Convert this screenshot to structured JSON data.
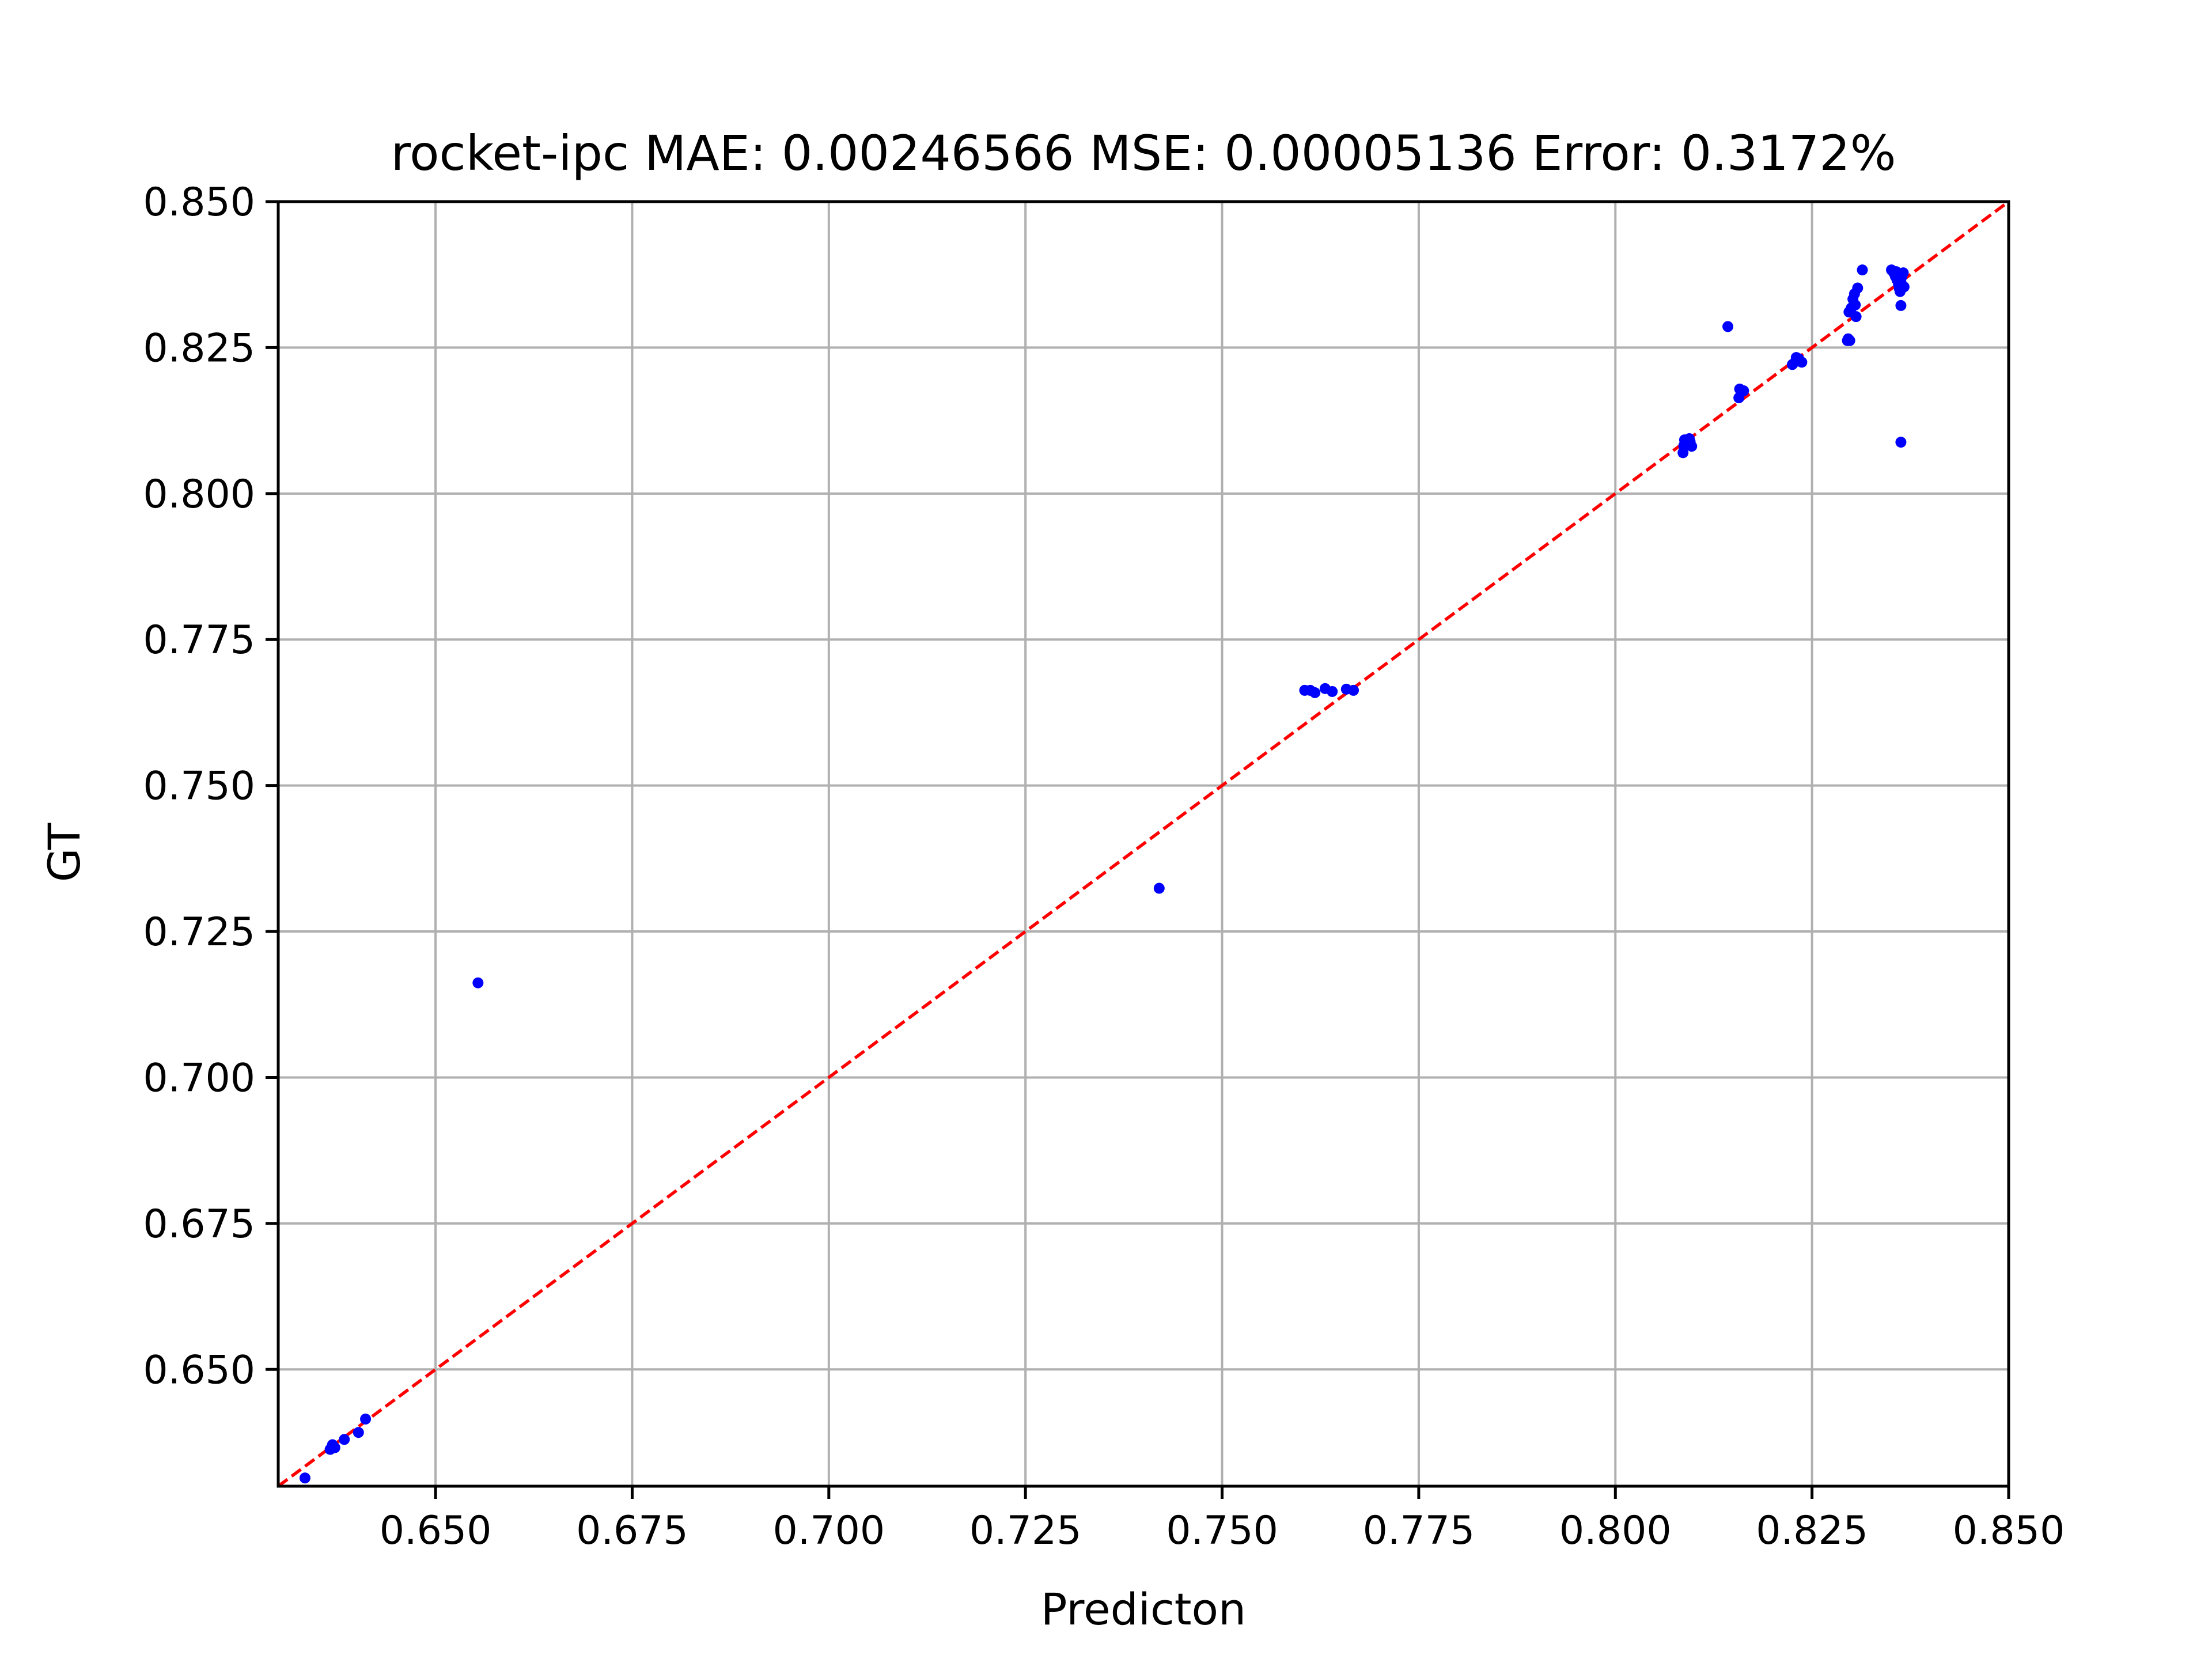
{
  "chart_data": {
    "type": "scatter",
    "title": "rocket-ipc MAE: 0.00246566 MSE: 0.00005136 Error: 0.3172%",
    "xlabel": "Predicton",
    "ylabel": "GT",
    "xlim": [
      0.63,
      0.85
    ],
    "ylim": [
      0.63,
      0.85
    ],
    "xticks": [
      "0.650",
      "0.675",
      "0.700",
      "0.725",
      "0.750",
      "0.775",
      "0.800",
      "0.825",
      "0.850"
    ],
    "yticks": [
      "0.650",
      "0.675",
      "0.700",
      "0.725",
      "0.750",
      "0.775",
      "0.800",
      "0.825",
      "0.850"
    ],
    "grid": true,
    "point_color": "#0000ff",
    "reference_line": {
      "style": "dashed",
      "color": "#ff0000",
      "from": [
        0.63,
        0.63
      ],
      "to": [
        0.85,
        0.85
      ]
    },
    "points": [
      [
        0.6334,
        0.6314
      ],
      [
        0.6366,
        0.6363
      ],
      [
        0.6372,
        0.6366
      ],
      [
        0.6369,
        0.6371
      ],
      [
        0.6384,
        0.638
      ],
      [
        0.6402,
        0.6392
      ],
      [
        0.6411,
        0.6415
      ],
      [
        0.6554,
        0.7162
      ],
      [
        0.742,
        0.7324
      ],
      [
        0.7605,
        0.7663
      ],
      [
        0.7612,
        0.7663
      ],
      [
        0.7618,
        0.7659
      ],
      [
        0.7631,
        0.7666
      ],
      [
        0.764,
        0.7661
      ],
      [
        0.7658,
        0.7665
      ],
      [
        0.7667,
        0.7663
      ],
      [
        0.8086,
        0.807
      ],
      [
        0.8087,
        0.8082
      ],
      [
        0.8088,
        0.8092
      ],
      [
        0.8095,
        0.8089
      ],
      [
        0.8097,
        0.8081
      ],
      [
        0.8094,
        0.8094
      ],
      [
        0.8143,
        0.8286
      ],
      [
        0.8157,
        0.8164
      ],
      [
        0.8158,
        0.8179
      ],
      [
        0.8163,
        0.8176
      ],
      [
        0.8225,
        0.8221
      ],
      [
        0.8229,
        0.8226
      ],
      [
        0.8233,
        0.8231
      ],
      [
        0.8237,
        0.8225
      ],
      [
        0.823,
        0.8233
      ],
      [
        0.8295,
        0.8262
      ],
      [
        0.8296,
        0.8265
      ],
      [
        0.8298,
        0.8262
      ],
      [
        0.8297,
        0.8311
      ],
      [
        0.83,
        0.8318
      ],
      [
        0.8302,
        0.8333
      ],
      [
        0.8304,
        0.8342
      ],
      [
        0.8305,
        0.8323
      ],
      [
        0.8306,
        0.8303
      ],
      [
        0.8308,
        0.8352
      ],
      [
        0.8314,
        0.8383
      ],
      [
        0.8351,
        0.8383
      ],
      [
        0.8354,
        0.8378
      ],
      [
        0.8356,
        0.8372
      ],
      [
        0.8357,
        0.838
      ],
      [
        0.8358,
        0.8366
      ],
      [
        0.836,
        0.8358
      ],
      [
        0.8361,
        0.8351
      ],
      [
        0.8362,
        0.8346
      ],
      [
        0.8363,
        0.8362
      ],
      [
        0.8364,
        0.8371
      ],
      [
        0.8366,
        0.8378
      ],
      [
        0.8367,
        0.8354
      ],
      [
        0.8363,
        0.8322
      ],
      [
        0.8363,
        0.8088
      ]
    ]
  }
}
